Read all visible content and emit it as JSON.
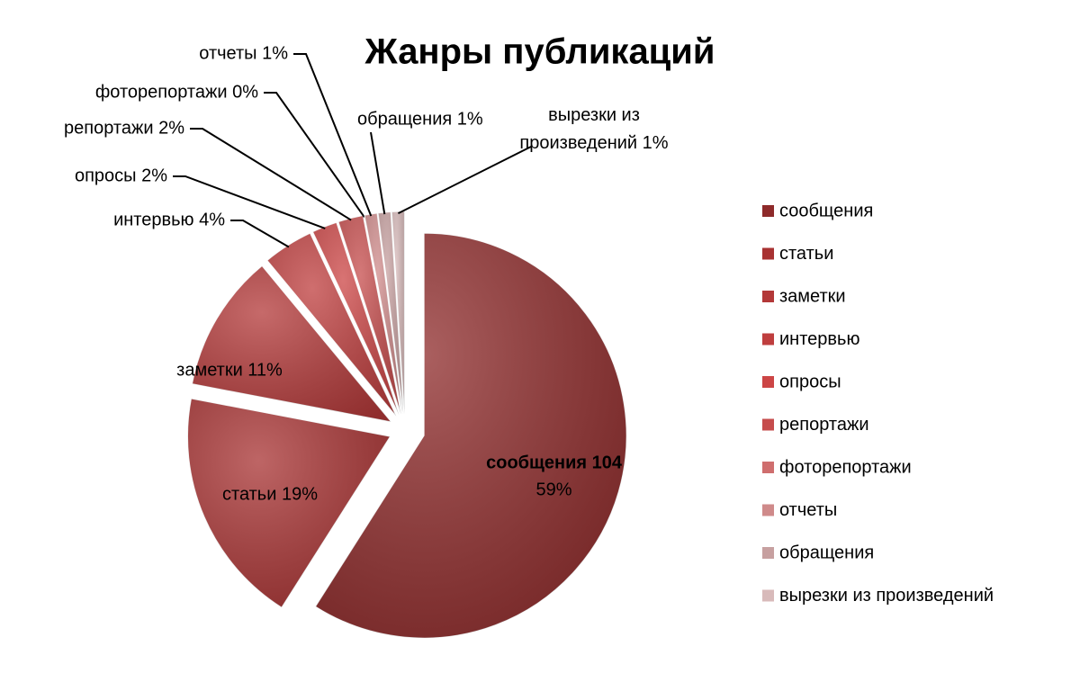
{
  "chart_data": {
    "type": "pie",
    "title": "Жанры публикаций",
    "categories": [
      "сообщения",
      "статьи",
      "заметки",
      "интервью",
      "опросы",
      "репортажи",
      "фоторепортажи",
      "отчеты",
      "обращения",
      "вырезки из произведений"
    ],
    "values": [
      59,
      19,
      11,
      4,
      2,
      2,
      0,
      1,
      1,
      1
    ],
    "value_labels": [
      "59%",
      "статьи 19%",
      "заметки 11%",
      "интервью 4%",
      "опросы 2%",
      "репортажи 2%",
      "фоторепортажи 0%",
      "отчеты 1%",
      "обращения 1%",
      "вырезки из произведений 1%"
    ],
    "annotations": [
      "сообщения 104"
    ],
    "colors": [
      "#8e2a2a",
      "#a83232",
      "#b33838",
      "#bf3e3e",
      "#cc4545",
      "#c64c4c",
      "#cf6e6e",
      "#cf8a8a",
      "#c7a0a0",
      "#d8baba"
    ],
    "legend": "right"
  }
}
